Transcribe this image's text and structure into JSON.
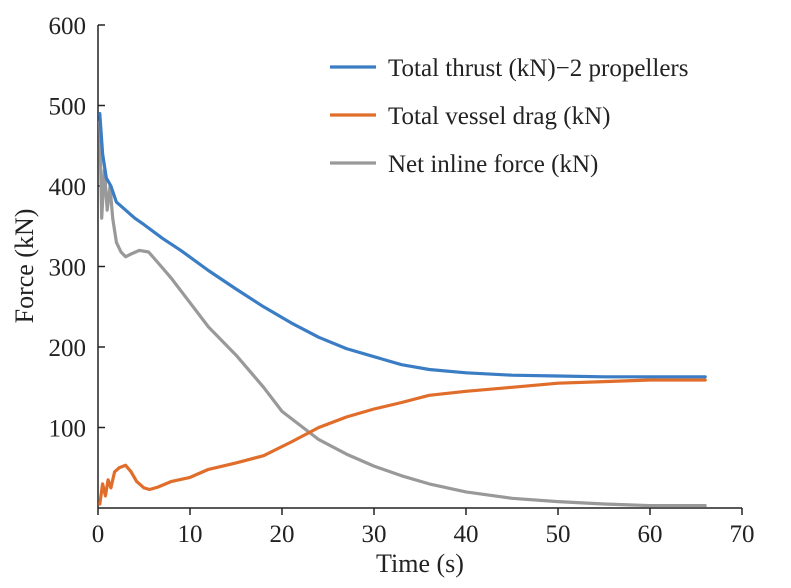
{
  "chart_data": {
    "type": "line",
    "title": "",
    "xlabel": "Time (s)",
    "ylabel": "Force (kN)",
    "xlim": [
      0,
      70
    ],
    "ylim": [
      0,
      600
    ],
    "xticks": [
      0,
      10,
      20,
      30,
      40,
      50,
      60,
      70
    ],
    "yticks": [
      100,
      200,
      300,
      400,
      500,
      600
    ],
    "grid": false,
    "legend_position": "top-right",
    "series": [
      {
        "name": "Total thrust (kN)−2 propellers",
        "color": "#3b7dc4",
        "x": [
          0.2,
          0.5,
          0.9,
          1.4,
          2,
          3,
          4,
          5,
          7,
          9,
          12,
          15,
          18,
          21,
          24,
          27,
          30,
          33,
          36,
          40,
          45,
          50,
          55,
          60,
          66
        ],
        "y": [
          490,
          440,
          410,
          400,
          380,
          370,
          360,
          352,
          335,
          320,
          295,
          272,
          250,
          230,
          212,
          198,
          188,
          178,
          172,
          168,
          165,
          164,
          163,
          163,
          163
        ]
      },
      {
        "name": "Total vessel drag (kN)",
        "color": "#e06d2a",
        "x": [
          0.2,
          0.5,
          0.8,
          1.1,
          1.4,
          1.8,
          2.3,
          3,
          3.6,
          4.2,
          5,
          5.6,
          6.5,
          8,
          10,
          12,
          15,
          18,
          21,
          24,
          27,
          30,
          33,
          36,
          40,
          45,
          50,
          55,
          60,
          66
        ],
        "y": [
          5,
          30,
          15,
          35,
          25,
          45,
          50,
          53,
          45,
          33,
          25,
          23,
          26,
          33,
          38,
          48,
          56,
          65,
          82,
          100,
          113,
          123,
          131,
          140,
          145,
          150,
          155,
          157,
          159,
          159
        ]
      },
      {
        "name": "Net inline force (kN)",
        "color": "#999999",
        "x": [
          0.2,
          0.4,
          0.7,
          1.0,
          1.3,
          1.6,
          2.0,
          2.5,
          3,
          3.5,
          4.5,
          5.5,
          6.5,
          8,
          10,
          12,
          15,
          18,
          20,
          24,
          27,
          30,
          33,
          36,
          40,
          45,
          50,
          55,
          60,
          66
        ],
        "y": [
          480,
          360,
          420,
          370,
          400,
          360,
          330,
          318,
          312,
          315,
          320,
          318,
          305,
          285,
          255,
          225,
          190,
          150,
          120,
          85,
          67,
          52,
          40,
          30,
          20,
          12,
          8,
          5,
          3,
          3
        ]
      }
    ]
  }
}
